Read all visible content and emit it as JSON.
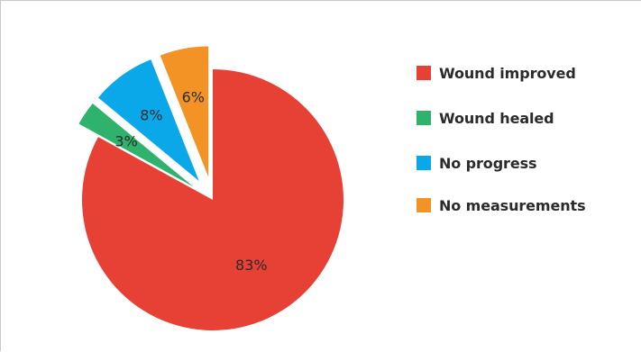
{
  "chart_data": {
    "type": "pie",
    "title": "",
    "categories": [
      "Wound improved",
      "Wound healed",
      "No progress",
      "No measurements"
    ],
    "values": [
      83,
      3,
      8,
      6
    ],
    "labels": [
      "83%",
      "3%",
      "8%",
      "6%"
    ],
    "colors": [
      "#e74035",
      "#2fb26b",
      "#0aa8e8",
      "#f39325"
    ],
    "exploded": [
      false,
      true,
      true,
      true
    ],
    "legend_position": "right",
    "unit": "%"
  }
}
